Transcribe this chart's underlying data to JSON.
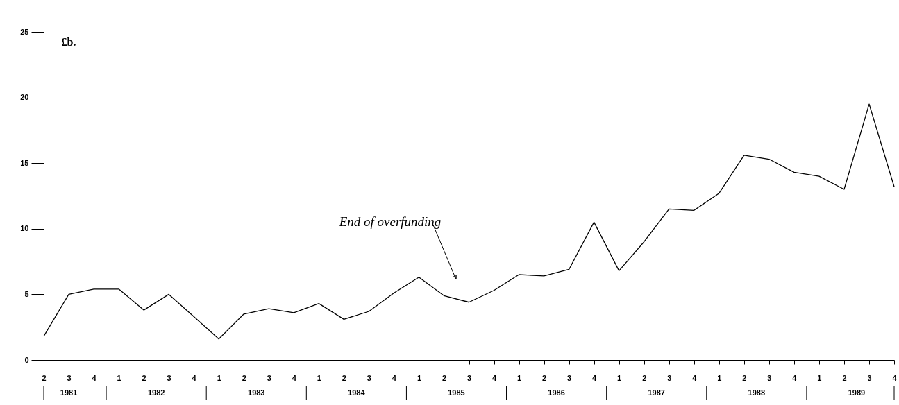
{
  "chart_data": {
    "type": "line",
    "ylabel": "£b.",
    "categories": [
      "2",
      "3",
      "4",
      "1",
      "2",
      "3",
      "4",
      "1",
      "2",
      "3",
      "4",
      "1",
      "2",
      "3",
      "4",
      "1",
      "2",
      "3",
      "4",
      "1",
      "2",
      "3",
      "4",
      "1",
      "2",
      "3",
      "4",
      "1",
      "2",
      "3",
      "4",
      "1",
      "2",
      "3",
      "4"
    ],
    "series": [
      {
        "color": "#000000",
        "values": [
          1.8,
          5.0,
          5.4,
          5.4,
          3.8,
          5.0,
          3.3,
          1.6,
          3.5,
          3.9,
          3.6,
          4.3,
          3.1,
          3.7,
          5.1,
          6.3,
          4.9,
          4.4,
          5.3,
          6.5,
          6.4,
          6.9,
          10.5,
          6.8,
          9.0,
          11.5,
          11.4,
          12.7,
          15.6,
          15.3,
          14.3,
          14.0,
          13.0,
          19.5,
          13.2
        ]
      }
    ],
    "ylim": [
      0,
      25
    ],
    "yticks": [
      0,
      5,
      10,
      15,
      20,
      25
    ],
    "annotations": [
      "End of overfunding",
      "1981",
      "1982",
      "1983",
      "1984",
      "1985",
      "1986",
      "1987",
      "1988",
      "1989"
    ],
    "marker": "none",
    "line_style": "solid"
  }
}
